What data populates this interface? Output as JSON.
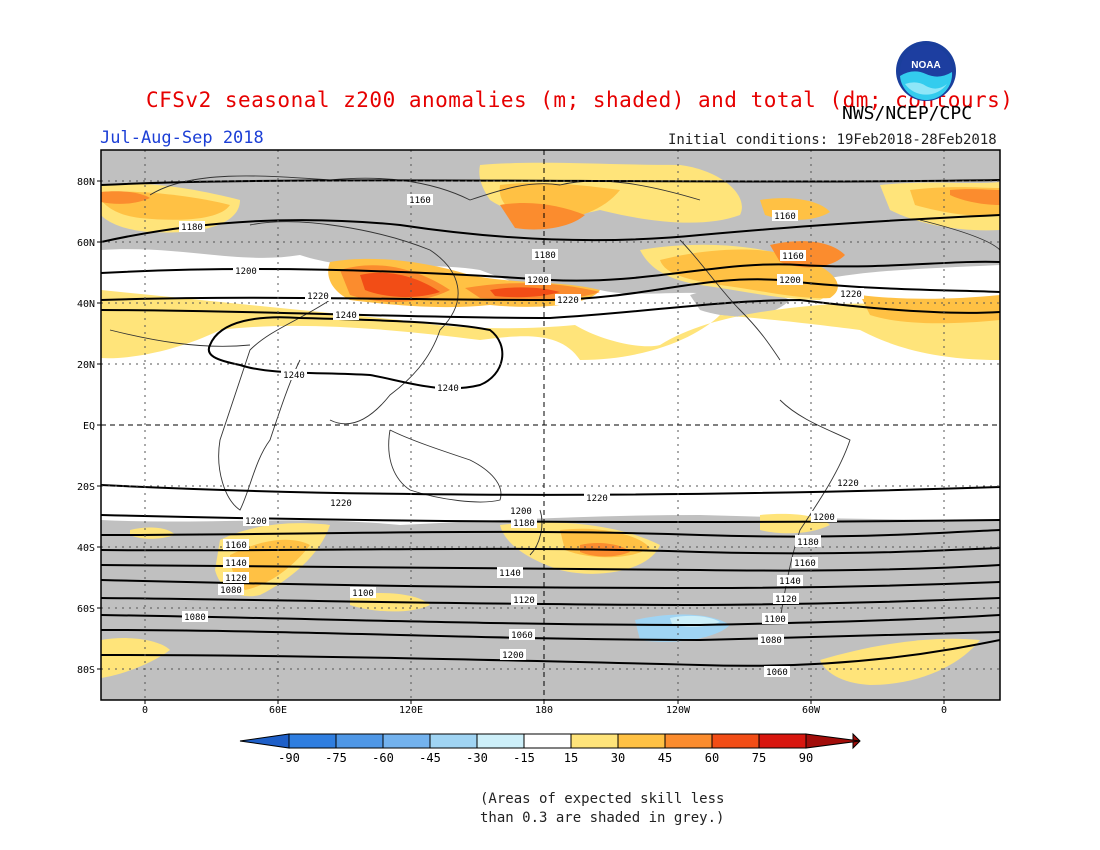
{
  "header": {
    "title": "CFSv2 seasonal z200 anomalies (m; shaded) and total (dm; contours)",
    "agency": "NWS/NCEP/CPC",
    "logo_text": "NOAA",
    "period": "Jul-Aug-Sep 2018",
    "initial_conditions": "Initial conditions: 19Feb2018-28Feb2018"
  },
  "map": {
    "lat_labels": [
      "80N",
      "60N",
      "40N",
      "20N",
      "EQ",
      "20S",
      "40S",
      "60S",
      "80S"
    ],
    "lon_labels": [
      "0",
      "60E",
      "120E",
      "180",
      "120W",
      "60W",
      "0"
    ],
    "contour_labels": [
      "1160",
      "1180",
      "1200",
      "1220",
      "1240",
      "1240",
      "1240",
      "1180",
      "1200",
      "1220",
      "1160",
      "1160",
      "1200",
      "1220",
      "1220",
      "1200",
      "1220",
      "1200",
      "1180",
      "1220",
      "1200",
      "1180",
      "1160",
      "1140",
      "1120",
      "1100",
      "1080",
      "1140",
      "1120",
      "1080",
      "1060",
      "1200",
      "1180",
      "1160",
      "1140",
      "1120",
      "1100",
      "1080",
      "1060"
    ]
  },
  "colorbar": {
    "labels": [
      "-90",
      "-75",
      "-60",
      "-45",
      "-30",
      "-15",
      "15",
      "30",
      "45",
      "60",
      "75",
      "90"
    ],
    "colors": [
      "#1e5fc8",
      "#2f7ee0",
      "#4f97e6",
      "#73b2ee",
      "#a0d4f3",
      "#cdeff9",
      "#ffffff",
      "#ffe47a",
      "#ffc144",
      "#fb8c2e",
      "#f24d16",
      "#d8160e",
      "#a20d0a"
    ]
  },
  "footnote": {
    "line1": "(Areas of expected skill less",
    "line2": "than 0.3 are shaded in grey.)"
  }
}
